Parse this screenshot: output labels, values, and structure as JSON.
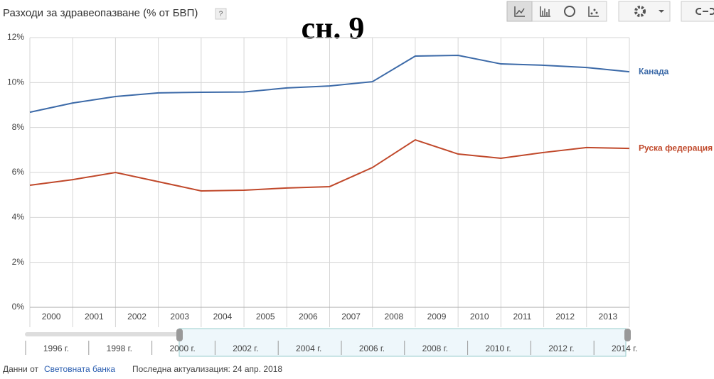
{
  "header": {
    "title": "Разходи за здравеопазване (% от БВП)",
    "help": "?"
  },
  "overlay": "сн. 9",
  "chart_data": {
    "type": "line",
    "x": [
      2000,
      2001,
      2002,
      2003,
      2004,
      2005,
      2006,
      2007,
      2008,
      2009,
      2010,
      2011,
      2012,
      2013,
      2014
    ],
    "xlim": [
      2000,
      2014
    ],
    "xticks": [
      2000,
      2001,
      2002,
      2003,
      2004,
      2005,
      2006,
      2007,
      2008,
      2009,
      2010,
      2011,
      2012,
      2013
    ],
    "ylim": [
      0,
      12
    ],
    "yticks": [
      {
        "value": 0,
        "label": "0%"
      },
      {
        "value": 2,
        "label": "2%"
      },
      {
        "value": 4,
        "label": "4%"
      },
      {
        "value": 6,
        "label": "6%"
      },
      {
        "value": 8,
        "label": "8%"
      },
      {
        "value": 10,
        "label": "10%"
      },
      {
        "value": 12,
        "label": "12%"
      }
    ],
    "grid": true,
    "series": [
      {
        "name": "Канада",
        "color": "#3c6aa8",
        "values": [
          8.68,
          9.09,
          9.38,
          9.54,
          9.57,
          9.58,
          9.76,
          9.85,
          10.04,
          11.18,
          11.21,
          10.83,
          10.77,
          10.67,
          10.48
        ]
      },
      {
        "name": "Руска федерация",
        "color": "#c0482a",
        "values": [
          5.43,
          5.68,
          6.0,
          5.59,
          5.18,
          5.21,
          5.31,
          5.37,
          6.22,
          7.45,
          6.82,
          6.63,
          6.89,
          7.11,
          7.07
        ]
      }
    ]
  },
  "timeline": {
    "labels": [
      "1996 г.",
      "1998 г.",
      "2000 г.",
      "2002 г.",
      "2004 г.",
      "2006 г.",
      "2008 г.",
      "2010 г.",
      "2012 г.",
      "2014 г."
    ]
  },
  "footer": {
    "source_prefix": "Данни от",
    "source": "Световната банка",
    "updated": "Последна актуализация: 24 апр. 2018"
  }
}
